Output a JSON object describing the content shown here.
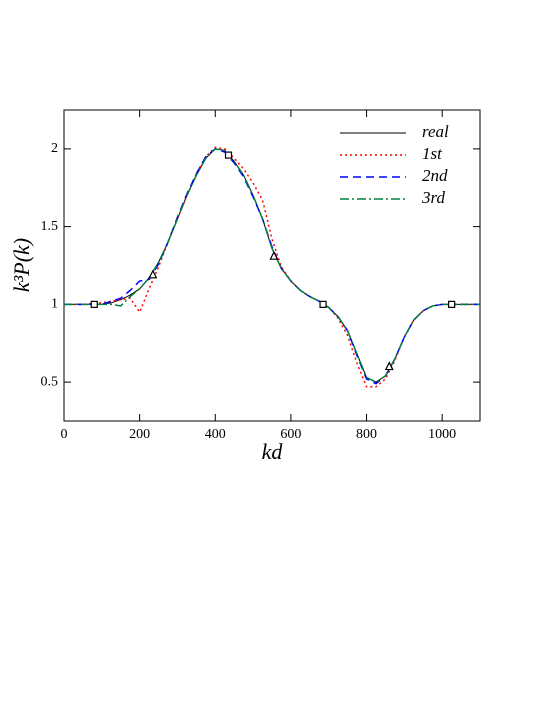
{
  "chart_data": {
    "type": "line",
    "xlabel": "kd",
    "ylabel": "k³P(k)",
    "x": [
      0,
      50,
      100,
      125,
      150,
      175,
      200,
      225,
      250,
      275,
      300,
      325,
      350,
      375,
      400,
      425,
      450,
      475,
      500,
      525,
      550,
      575,
      600,
      625,
      650,
      675,
      700,
      725,
      750,
      775,
      800,
      825,
      850,
      875,
      900,
      925,
      950,
      975,
      1000,
      1050,
      1100
    ],
    "series": [
      {
        "name": "real",
        "color": "#000000",
        "dash": "none",
        "width": 1,
        "values": [
          1,
          1,
          1.0,
          1.01,
          1.03,
          1.06,
          1.1,
          1.17,
          1.27,
          1.4,
          1.55,
          1.7,
          1.83,
          1.94,
          2.0,
          1.99,
          1.92,
          1.83,
          1.7,
          1.55,
          1.36,
          1.23,
          1.15,
          1.09,
          1.05,
          1.02,
          0.98,
          0.92,
          0.83,
          0.68,
          0.53,
          0.5,
          0.54,
          0.65,
          0.79,
          0.9,
          0.96,
          0.99,
          1.0,
          1.0,
          1.0
        ]
      },
      {
        "name": "1st",
        "color": "#ff0000",
        "dash": "2,3",
        "width": 1.5,
        "values": [
          1,
          1,
          1.01,
          1.02,
          1.03,
          1.04,
          0.95,
          1.1,
          1.24,
          1.4,
          1.55,
          1.7,
          1.84,
          1.95,
          2.01,
          2.0,
          1.94,
          1.87,
          1.78,
          1.67,
          1.42,
          1.24,
          1.15,
          1.09,
          1.05,
          1.02,
          0.98,
          0.91,
          0.8,
          0.62,
          0.47,
          0.47,
          0.52,
          0.64,
          0.79,
          0.9,
          0.96,
          0.99,
          1.0,
          1.0,
          1.0
        ]
      },
      {
        "name": "2nd",
        "color": "#0000ff",
        "dash": "8,5",
        "width": 1.5,
        "values": [
          1,
          1,
          1.0,
          1.02,
          1.04,
          1.09,
          1.15,
          1.16,
          1.26,
          1.4,
          1.56,
          1.71,
          1.84,
          1.95,
          2.0,
          1.98,
          1.91,
          1.82,
          1.69,
          1.55,
          1.37,
          1.23,
          1.15,
          1.09,
          1.05,
          1.02,
          0.98,
          0.92,
          0.83,
          0.67,
          0.52,
          0.49,
          0.54,
          0.65,
          0.79,
          0.9,
          0.96,
          0.99,
          1.0,
          1.0,
          1.0
        ]
      },
      {
        "name": "3rd",
        "color": "#008040",
        "dash": "9,3,2,3",
        "width": 1.5,
        "values": [
          1,
          1,
          1.0,
          1.0,
          0.99,
          1.05,
          1.1,
          1.17,
          1.27,
          1.4,
          1.55,
          1.7,
          1.83,
          1.94,
          2.0,
          1.99,
          1.92,
          1.83,
          1.7,
          1.55,
          1.36,
          1.23,
          1.15,
          1.09,
          1.05,
          1.02,
          0.98,
          0.92,
          0.83,
          0.68,
          0.53,
          0.5,
          0.54,
          0.65,
          0.79,
          0.9,
          0.96,
          0.99,
          1.0,
          1.0,
          1.0
        ]
      }
    ],
    "square_markers": {
      "x": [
        80,
        435,
        685,
        1025
      ],
      "y": [
        1,
        1.96,
        1,
        1
      ]
    },
    "triangle_markers": {
      "x": [
        235,
        555,
        860
      ],
      "y": [
        1.19,
        1.31,
        0.6
      ]
    },
    "xlim": [
      0,
      1100
    ],
    "xticks": [
      0,
      200,
      400,
      600,
      800,
      1000
    ],
    "ylim": [
      0.25,
      2.25
    ],
    "yticks": [
      0.5,
      1,
      1.5,
      2
    ],
    "legend": "upper right"
  }
}
